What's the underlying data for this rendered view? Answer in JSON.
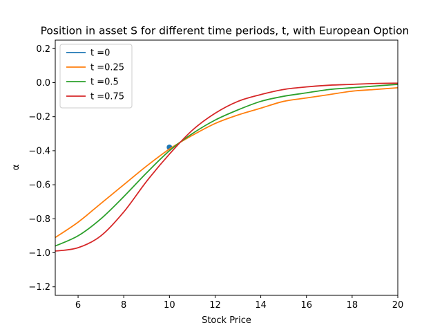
{
  "chart_data": {
    "type": "line",
    "title": "Position in asset S for different time periods, t, with European Option",
    "xlabel": "Stock Price",
    "ylabel": "α",
    "xlim": [
      5,
      20
    ],
    "ylim": [
      -1.25,
      0.25
    ],
    "xticks": [
      6,
      8,
      10,
      12,
      14,
      16,
      18,
      20
    ],
    "yticks": [
      -1.2,
      -1.0,
      -0.8,
      -0.6,
      -0.4,
      -0.2,
      0.0,
      0.2
    ],
    "ytick_labels": [
      "−1.2",
      "−1.0",
      "−0.8",
      "−0.6",
      "−0.4",
      "−0.2",
      "0.0",
      "0.2"
    ],
    "legend_position": "top-left",
    "grid": false,
    "series": [
      {
        "name": "t =0",
        "color": "#1f77b4",
        "kind": "point",
        "x": [
          10
        ],
        "y": [
          -0.38
        ]
      },
      {
        "name": "t =0.25",
        "color": "#ff7f0e",
        "kind": "line",
        "x": [
          5,
          6,
          7,
          8,
          9,
          10,
          11,
          12,
          13,
          14,
          15,
          16,
          17,
          18,
          19,
          20
        ],
        "y": [
          -0.91,
          -0.82,
          -0.71,
          -0.6,
          -0.49,
          -0.39,
          -0.31,
          -0.24,
          -0.19,
          -0.15,
          -0.11,
          -0.09,
          -0.07,
          -0.05,
          -0.04,
          -0.03
        ]
      },
      {
        "name": "t =0.5",
        "color": "#2ca02c",
        "kind": "line",
        "x": [
          5,
          6,
          7,
          8,
          9,
          10,
          11,
          12,
          13,
          14,
          15,
          16,
          17,
          18,
          19,
          20
        ],
        "y": [
          -0.96,
          -0.9,
          -0.8,
          -0.67,
          -0.53,
          -0.4,
          -0.3,
          -0.22,
          -0.16,
          -0.11,
          -0.08,
          -0.06,
          -0.04,
          -0.03,
          -0.02,
          -0.01
        ]
      },
      {
        "name": "t =0.75",
        "color": "#d62728",
        "kind": "line",
        "x": [
          5,
          6,
          7,
          8,
          9,
          10,
          11,
          12,
          13,
          14,
          15,
          16,
          17,
          18,
          19,
          20
        ],
        "y": [
          -0.99,
          -0.97,
          -0.9,
          -0.76,
          -0.58,
          -0.42,
          -0.28,
          -0.18,
          -0.11,
          -0.07,
          -0.04,
          -0.025,
          -0.015,
          -0.01,
          -0.005,
          -0.003
        ]
      }
    ]
  }
}
